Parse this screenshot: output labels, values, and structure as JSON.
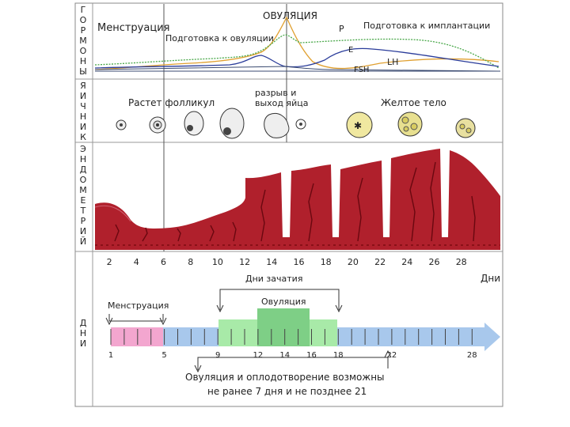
{
  "hormones": {
    "side_label": [
      "Г",
      "О",
      "Р",
      "М",
      "О",
      "Н",
      "Ы"
    ],
    "menstruation": "Менструация",
    "ovulation": "ОВУЛЯЦИЯ",
    "prep_ovulation": "Подготовка к овуляции",
    "prep_implantation": "Подготовка к имплантации",
    "curve_P": "P",
    "curve_E": "E",
    "curve_LH": "LH",
    "curve_FSH": "FSH"
  },
  "ovary": {
    "side_label": [
      "Я",
      "И",
      "Ч",
      "Н",
      "И",
      "К"
    ],
    "follicle_growth": "Растет фолликул",
    "rupture_line1": "разрыв и",
    "rupture_line2": "выход яйца",
    "corpus_luteum": "Желтое тело"
  },
  "endometrium": {
    "side_label": [
      "Э",
      "Н",
      "Д",
      "О",
      "М",
      "Е",
      "Т",
      "Р",
      "И",
      "Й"
    ]
  },
  "days_axis": {
    "ticks": [
      "2",
      "4",
      "6",
      "8",
      "10",
      "12",
      "14",
      "16",
      "18",
      "20",
      "22",
      "24",
      "26",
      "28"
    ],
    "label": "Дни"
  },
  "days": {
    "side_label": [
      "Д",
      "Н",
      "И"
    ],
    "conception_days": "Дни зачатия",
    "menstruation": "Менструация",
    "ovulation": "Овуляция",
    "bar_numbers": [
      "1",
      "5",
      "9",
      "12",
      "14",
      "16",
      "18",
      "22",
      "28"
    ],
    "footnote_line1": "Овуляция и оплодотворение возможны",
    "footnote_line2": "не ранее 7 дня и не позднее 21"
  },
  "colors": {
    "endometrium": "#b0202c",
    "endometrium_dark": "#8a1018",
    "curve_E": "#2a3c9a",
    "curve_P": "#4aa84a",
    "curve_LH": "#e0a030",
    "curve_FSH": "#3a4a70",
    "bar_pink": "#f3a6cf",
    "bar_blue": "#a8c8ec",
    "bar_green": "#a8eaa8",
    "bar_green_dark": "#7ecf86"
  }
}
